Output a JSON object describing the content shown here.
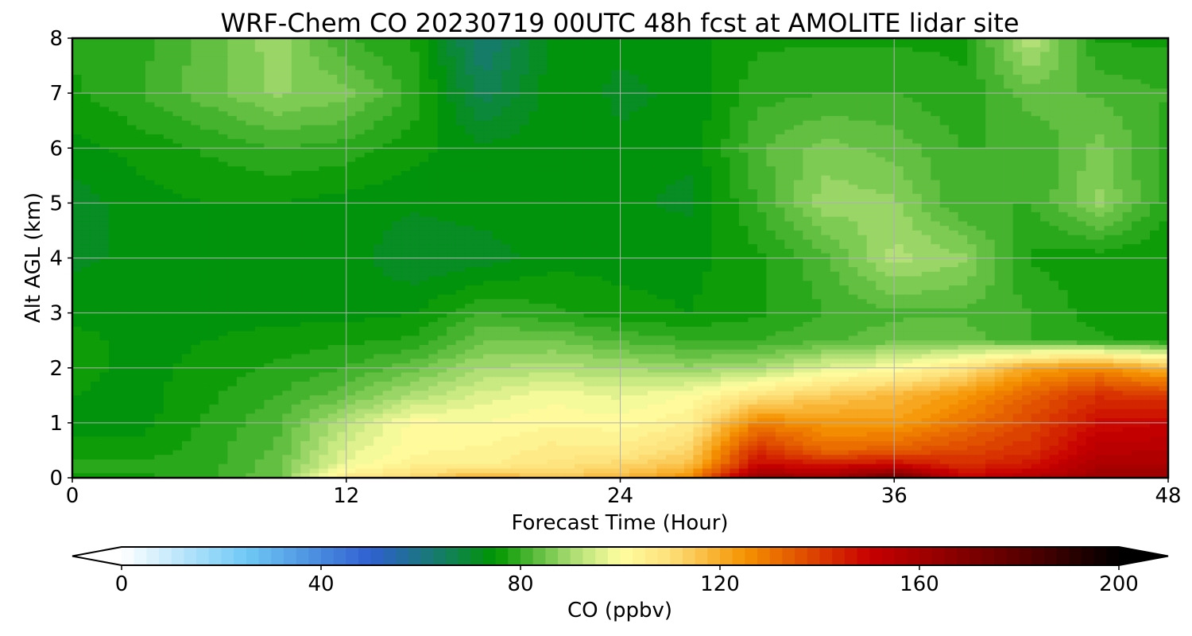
{
  "chart_data": {
    "type": "heatmap",
    "title": "WRF-Chem CO  20230719 00UTC 48h fcst at AMOLITE lidar site",
    "xlabel": "Forecast Time (Hour)",
    "ylabel": "Alt AGL (km)",
    "xlim": [
      0,
      48
    ],
    "ylim": [
      0,
      8
    ],
    "x_ticks": [
      0,
      12,
      24,
      36,
      48
    ],
    "y_ticks": [
      0,
      1,
      2,
      3,
      4,
      5,
      6,
      7,
      8
    ],
    "grid": true,
    "x": [
      0,
      3,
      6,
      9,
      12,
      15,
      18,
      21,
      24,
      27,
      30,
      33,
      36,
      39,
      42,
      45,
      48
    ],
    "y": [
      0,
      0.25,
      0.5,
      1,
      1.5,
      2,
      2.5,
      3,
      4,
      5,
      6,
      7,
      8
    ],
    "z": [
      [
        77,
        77,
        79,
        85,
        106,
        112,
        120,
        114,
        118,
        125,
        165,
        160,
        175,
        150,
        155,
        162,
        163
      ],
      [
        78,
        78,
        79,
        84,
        98,
        104,
        104,
        108,
        111,
        116,
        148,
        146,
        148,
        142,
        146,
        158,
        157
      ],
      [
        76,
        76,
        79,
        83,
        96,
        102,
        103,
        106,
        106,
        112,
        143,
        132,
        134,
        138,
        142,
        154,
        155
      ],
      [
        74,
        74,
        78,
        82,
        92,
        101,
        100,
        102,
        101,
        105,
        128,
        124,
        123,
        130,
        138,
        148,
        150
      ],
      [
        75,
        74,
        77,
        80,
        84,
        91,
        96,
        99,
        97,
        100,
        108,
        114,
        118,
        124,
        134,
        142,
        140
      ],
      [
        76,
        74,
        76,
        78,
        80,
        84,
        90,
        91,
        90,
        88,
        90,
        96,
        100,
        108,
        122,
        126,
        118
      ],
      [
        76,
        74,
        75,
        76,
        77,
        78,
        85,
        85,
        82,
        80,
        80,
        82,
        84,
        84,
        80,
        78,
        76
      ],
      [
        74,
        74,
        74,
        74,
        74,
        75,
        80,
        78,
        76,
        75,
        77,
        80,
        82,
        82,
        80,
        76,
        75
      ],
      [
        72,
        73,
        74,
        74,
        74,
        70,
        71,
        74,
        74,
        74,
        77,
        82,
        91,
        88,
        77,
        76,
        75
      ],
      [
        71,
        74,
        75,
        75,
        74,
        73,
        74,
        74,
        73,
        72,
        80,
        89,
        88,
        80,
        80,
        88,
        78
      ],
      [
        74,
        76,
        78,
        80,
        79,
        76,
        73,
        74,
        73,
        73,
        82,
        86,
        84,
        80,
        80,
        86,
        79
      ],
      [
        77,
        80,
        84,
        88,
        86,
        79,
        66,
        74,
        72,
        73,
        79,
        80,
        80,
        78,
        84,
        82,
        80
      ],
      [
        78,
        79,
        84,
        89,
        80,
        77,
        62,
        73,
        73,
        74,
        77,
        77,
        77,
        77,
        92,
        77,
        77
      ]
    ],
    "colorbar": {
      "label": "CO  (ppbv)",
      "vmin": 0,
      "vmax": 200,
      "ticks": [
        0,
        40,
        80,
        120,
        160,
        200
      ],
      "extend": "both",
      "color_stops": [
        {
          "v": 0,
          "c": "#ffffff"
        },
        {
          "v": 25,
          "c": "#6fc9f5"
        },
        {
          "v": 50,
          "c": "#2f5fd0"
        },
        {
          "v": 65,
          "c": "#137f5e"
        },
        {
          "v": 75,
          "c": "#009600"
        },
        {
          "v": 90,
          "c": "#a8dc70"
        },
        {
          "v": 100,
          "c": "#fffea0"
        },
        {
          "v": 110,
          "c": "#fde07a"
        },
        {
          "v": 125,
          "c": "#f59300"
        },
        {
          "v": 150,
          "c": "#c80000"
        },
        {
          "v": 180,
          "c": "#5a0000"
        },
        {
          "v": 200,
          "c": "#000000"
        }
      ]
    }
  }
}
